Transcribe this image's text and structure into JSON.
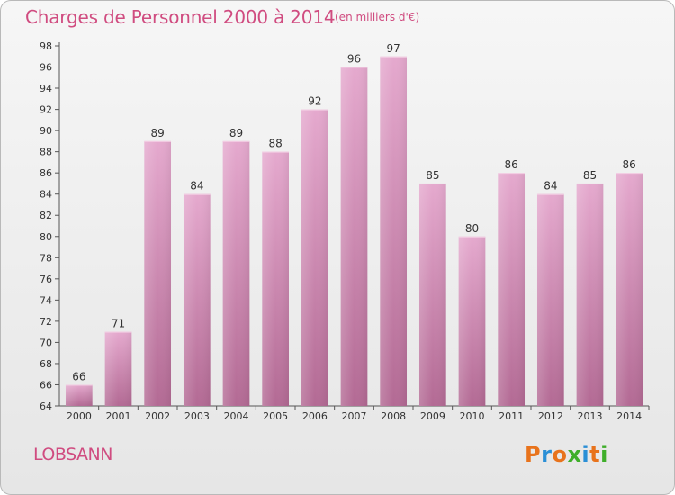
{
  "header": {
    "title": "Charges de Personnel 2000 à 2014",
    "unit": "(en milliers d'€)"
  },
  "footer": {
    "commune": "LOBSANN",
    "logo": "Proxiti"
  },
  "colors": {
    "bar_top": "#e5a9ce",
    "bar_bottom": "#b36a94",
    "title": "#d04c80",
    "logo_letters": [
      "#e8731c",
      "#2a8fd6",
      "#e8731c",
      "#3fae2a",
      "#2a8fd6",
      "#e8731c",
      "#3fae2a"
    ]
  },
  "chart_data": {
    "type": "bar",
    "categories": [
      "2000",
      "2001",
      "2002",
      "2003",
      "2004",
      "2005",
      "2006",
      "2007",
      "2008",
      "2009",
      "2010",
      "2011",
      "2012",
      "2013",
      "2014"
    ],
    "values": [
      66,
      71,
      89,
      84,
      89,
      88,
      92,
      96,
      97,
      85,
      80,
      86,
      84,
      85,
      86
    ],
    "data_labels": [
      "66",
      "71",
      "89",
      "84",
      "89",
      "88",
      "92",
      "96",
      "97",
      "85",
      "80",
      "86",
      "84",
      "85",
      "86"
    ],
    "title": "Charges de Personnel 2000 à 2014",
    "xlabel": "",
    "ylabel": "",
    "ylim": [
      64,
      98
    ],
    "yticks": [
      "64",
      "66",
      "68",
      "70",
      "72",
      "74",
      "76",
      "78",
      "80",
      "82",
      "84",
      "86",
      "88",
      "90",
      "92",
      "94",
      "96",
      "98"
    ],
    "grid": false,
    "legend": "none"
  }
}
